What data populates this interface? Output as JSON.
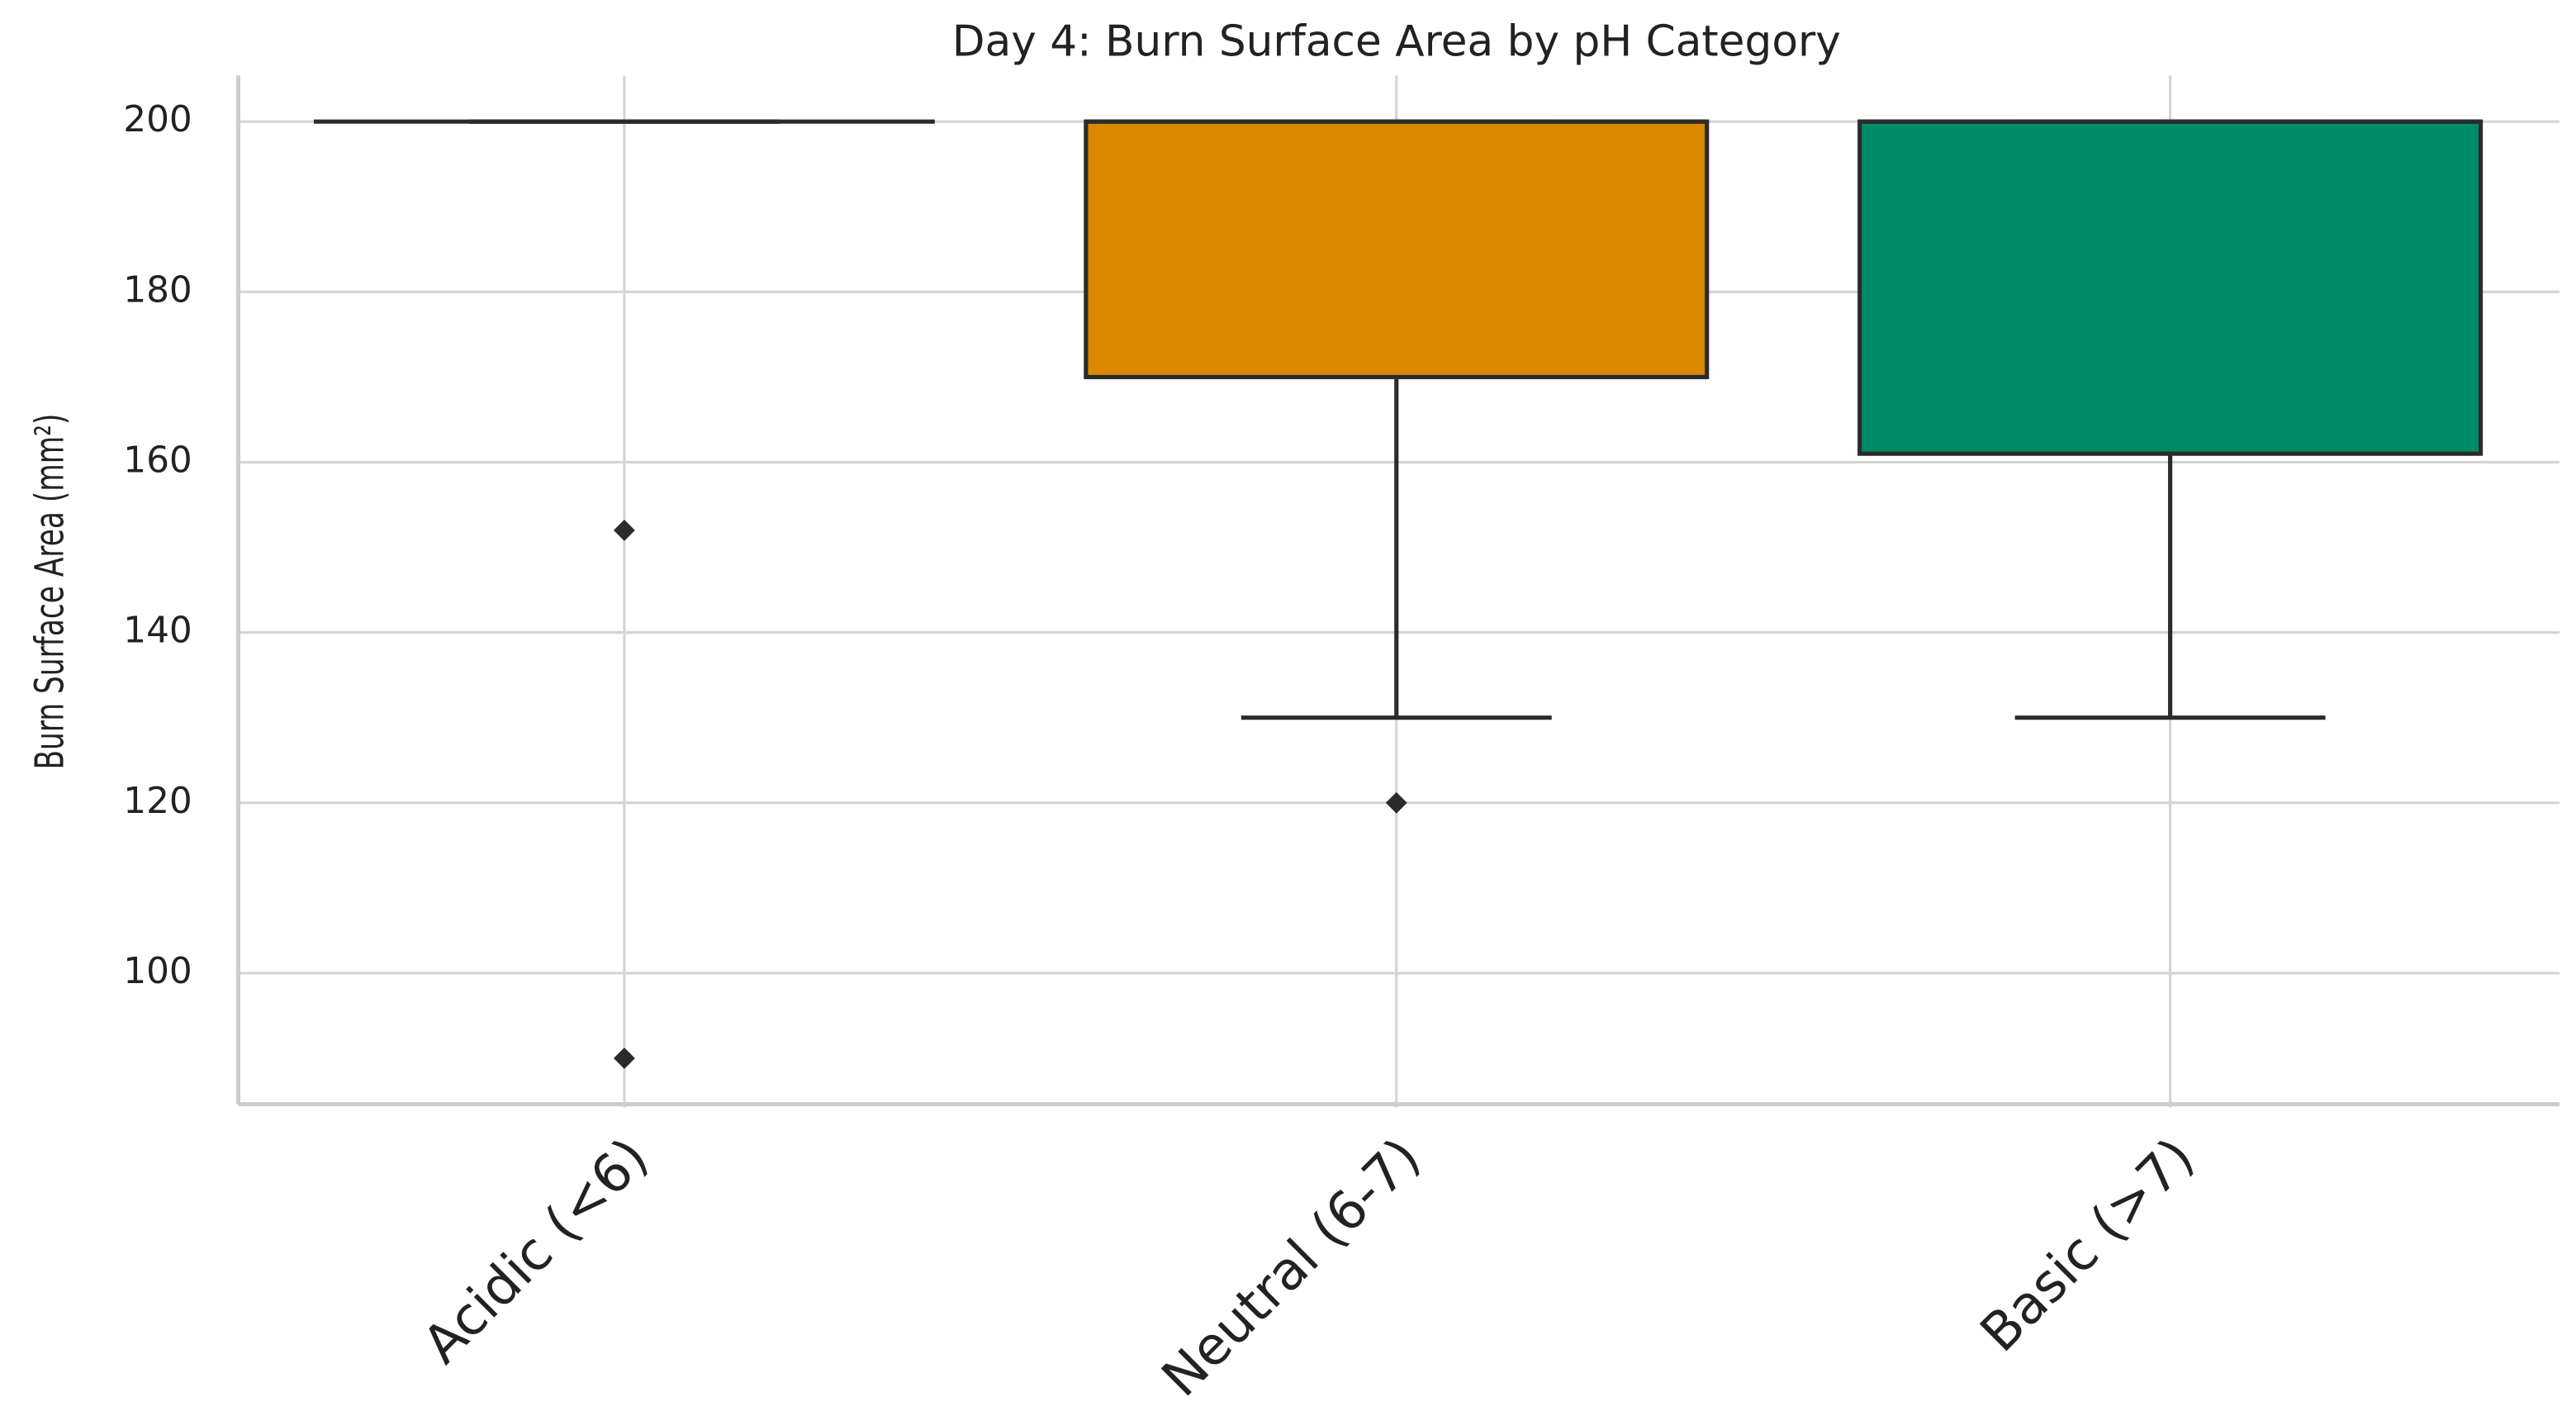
{
  "chart_data": {
    "type": "box",
    "title": "Day 4: Burn Surface Area by pH Category",
    "y_label": "Burn Surface Area (mm²)",
    "categories": [
      "Acidic (<6)",
      "Neutral (6-7)",
      "Basic (>7)"
    ],
    "boxes": [
      {
        "color": "#0072b2",
        "whislo": 200,
        "q1": 200,
        "med": 200,
        "q3": 200,
        "whishi": 200,
        "fliers": [
          152,
          90
        ]
      },
      {
        "color": "#d98800",
        "whislo": 130,
        "q1": 170,
        "med": 200,
        "q3": 200,
        "whishi": 200,
        "fliers": [
          120
        ]
      },
      {
        "color": "#008b68",
        "whislo": 130,
        "q1": 161,
        "med": 200,
        "q3": 200,
        "whishi": 200,
        "fliers": []
      }
    ],
    "ylim": [
      84.6,
      205.4
    ],
    "yticks": [
      100,
      120,
      140,
      160,
      180,
      200
    ],
    "grid": true
  }
}
